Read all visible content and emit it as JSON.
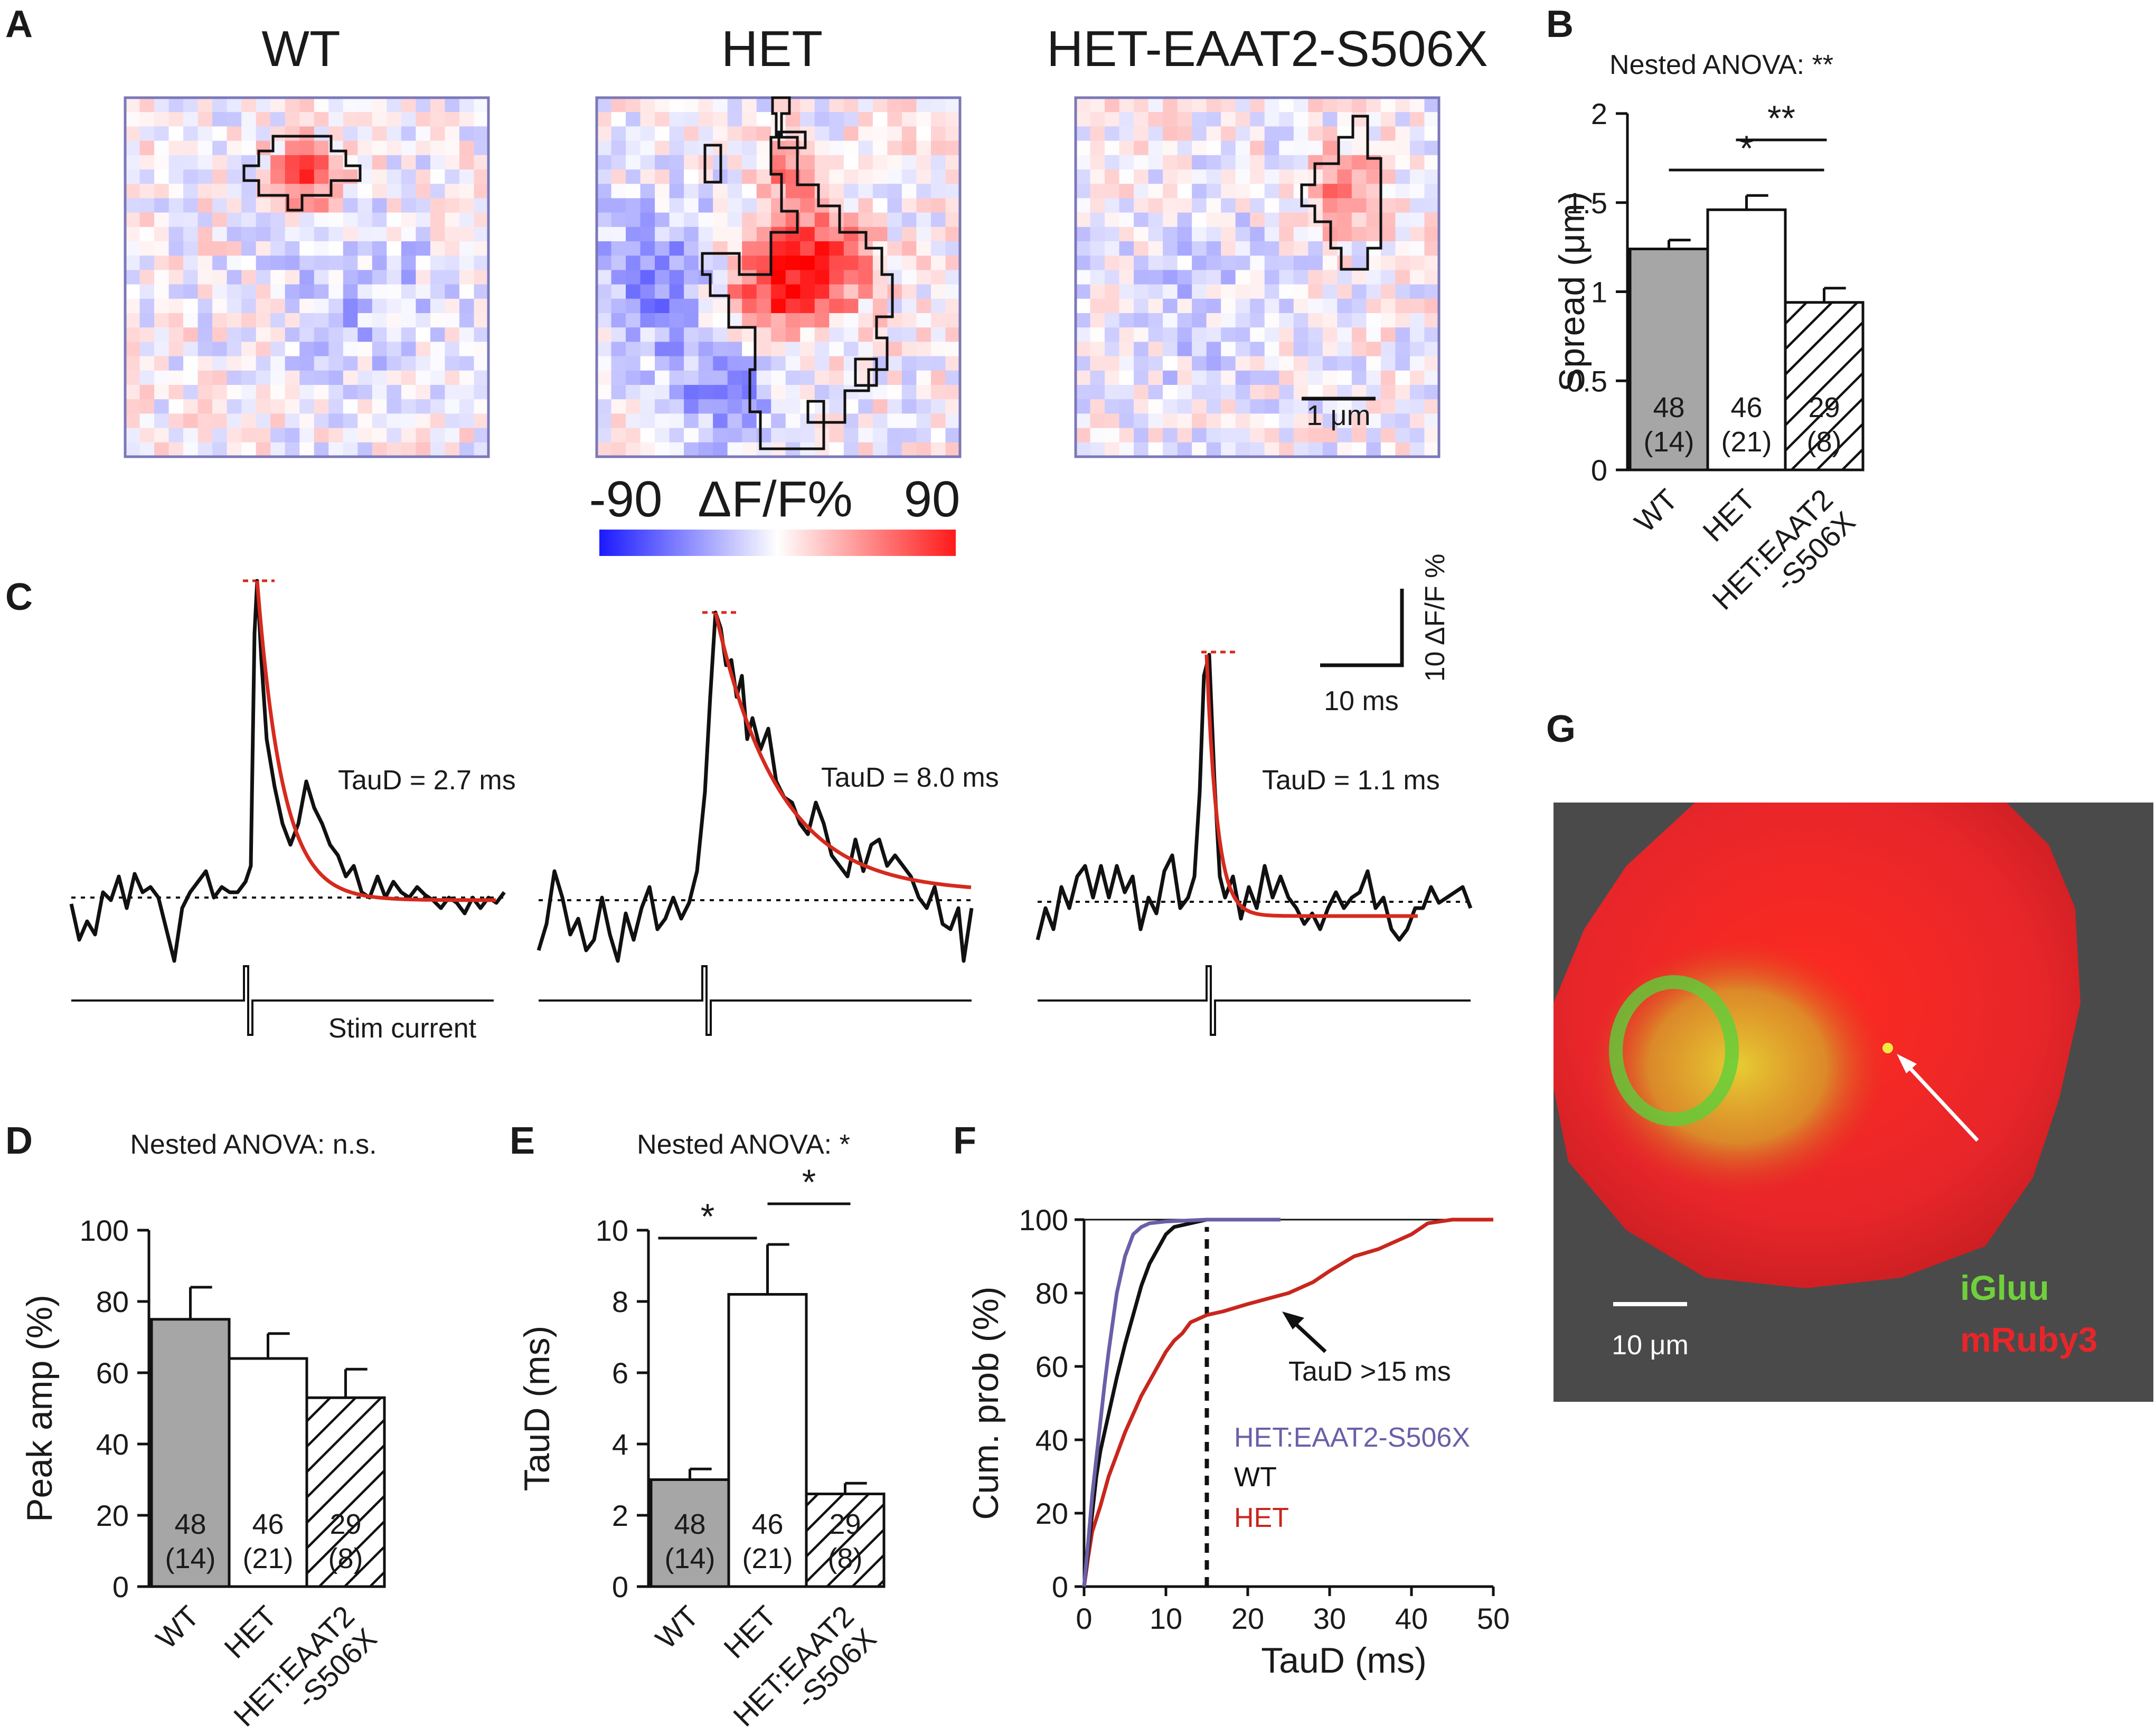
{
  "panel_labels": {
    "A": "A",
    "B": "B",
    "C": "C",
    "D": "D",
    "E": "E",
    "F": "F",
    "G": "G"
  },
  "panelA": {
    "titles": [
      "WT",
      "HET",
      "HET-EAAT2-S506X"
    ],
    "colorbar": {
      "min_label": "-90",
      "label": "ΔF/F%",
      "max_label": "90",
      "low_color": "#1a1aff",
      "high_color": "#ff1a1a"
    },
    "scalebar_label": "1 μm"
  },
  "panelC": {
    "tau_labels": [
      "TauD = 2.7 ms",
      "TauD = 8.0 ms",
      "TauD = 1.1 ms"
    ],
    "stim_label": "Stim current",
    "scale_x_label": "10 ms",
    "scale_y_label": "10 ΔF/F %",
    "fit_color": "#d62a1e"
  },
  "panelG": {
    "scalebar_label": "10 μm",
    "label_green": "iGluu",
    "label_red": "mRuby3",
    "green_color": "#6fd13a",
    "red_color": "#e8262a"
  },
  "chart_data": [
    {
      "id": "B",
      "type": "bar",
      "title": "Nested ANOVA: **",
      "ylabel": "Spread (μm)",
      "categories": [
        "WT",
        "HET",
        "HET:EAAT2-S506X"
      ],
      "category_lines": [
        [
          "WT"
        ],
        [
          "HET"
        ],
        [
          "HET:EAAT2",
          "-S506X"
        ]
      ],
      "values": [
        1.24,
        1.46,
        0.94
      ],
      "errors": [
        0.05,
        0.08,
        0.08
      ],
      "n_cells": [
        "48",
        "46",
        "29"
      ],
      "n_animals": [
        "(14)",
        "(21)",
        "(8)"
      ],
      "ylim": [
        0,
        2
      ],
      "yticks": [
        0,
        0.5,
        1,
        1.5,
        2
      ],
      "ytick_labels": [
        "0",
        "0.5",
        "1",
        "1.5",
        "2"
      ],
      "significance": [
        {
          "from": 0,
          "to": 2,
          "label": "*"
        },
        {
          "from": 1,
          "to": 2,
          "label": "**"
        }
      ]
    },
    {
      "id": "D",
      "type": "bar",
      "title": "Nested ANOVA: n.s.",
      "ylabel": "Peak amp (%)",
      "categories": [
        "WT",
        "HET",
        "HET:EAAT2-S506X"
      ],
      "category_lines": [
        [
          "WT"
        ],
        [
          "HET"
        ],
        [
          "HET:EAAT2",
          "-S506X"
        ]
      ],
      "values": [
        75,
        64,
        53
      ],
      "errors": [
        9,
        7,
        8
      ],
      "n_cells": [
        "48",
        "46",
        "29"
      ],
      "n_animals": [
        "(14)",
        "(21)",
        "(8)"
      ],
      "ylim": [
        0,
        100
      ],
      "yticks": [
        0,
        20,
        40,
        60,
        80,
        100
      ],
      "ytick_labels": [
        "0",
        "20",
        "40",
        "60",
        "80",
        "100"
      ],
      "significance": []
    },
    {
      "id": "E",
      "type": "bar",
      "title": "Nested ANOVA:  *",
      "ylabel": "TauD (ms)",
      "categories": [
        "WT",
        "HET",
        "HET:EAAT2-S506X"
      ],
      "category_lines": [
        [
          "WT"
        ],
        [
          "HET"
        ],
        [
          "HET:EAAT2",
          "-S506X"
        ]
      ],
      "values": [
        3.0,
        8.2,
        2.6
      ],
      "errors": [
        0.3,
        1.4,
        0.3
      ],
      "n_cells": [
        "48",
        "46",
        "29"
      ],
      "n_animals": [
        "(14)",
        "(21)",
        "(8)"
      ],
      "ylim": [
        0,
        10
      ],
      "yticks": [
        0,
        2,
        4,
        6,
        8,
        10
      ],
      "ytick_labels": [
        "0",
        "2",
        "4",
        "6",
        "8",
        "10"
      ],
      "significance": [
        {
          "from": 0,
          "to": 1,
          "label": "*"
        },
        {
          "from": 1,
          "to": 2,
          "label": "*"
        }
      ]
    },
    {
      "id": "F",
      "type": "line",
      "xlabel": "TauD (ms)",
      "ylabel": "Cum. prob (%)",
      "xlim": [
        0,
        50
      ],
      "ylim": [
        0,
        100
      ],
      "xticks": [
        0,
        10,
        20,
        30,
        40,
        50
      ],
      "yticks": [
        0,
        20,
        40,
        60,
        80,
        100
      ],
      "cutoff": 15,
      "annotation": "TauD >15 ms",
      "series": [
        {
          "name": "HET:EAAT2-S506X",
          "color": "#6a5fa8",
          "x": [
            0,
            0.5,
            1,
            1.5,
            2,
            2.5,
            3,
            3.5,
            4,
            5,
            6,
            7,
            8,
            10,
            15,
            24
          ],
          "y": [
            0,
            12,
            25,
            35,
            45,
            55,
            64,
            72,
            80,
            90,
            96,
            98,
            99,
            99.5,
            100,
            100
          ]
        },
        {
          "name": "WT",
          "color": "#111111",
          "x": [
            0,
            0.5,
            1,
            1.5,
            2,
            3,
            4,
            5,
            6,
            7,
            8,
            9,
            10,
            11,
            13,
            15,
            24
          ],
          "y": [
            0,
            10,
            20,
            30,
            37,
            47,
            57,
            66,
            74,
            82,
            88,
            92,
            96,
            98,
            99,
            100,
            100
          ]
        },
        {
          "name": "HET",
          "color": "#c8261e",
          "x": [
            0,
            0.5,
            1,
            2,
            3,
            4,
            5,
            6,
            7,
            8,
            9,
            10,
            11,
            12,
            13,
            14,
            15,
            17,
            20,
            25,
            28,
            30,
            33,
            36,
            38,
            40,
            42,
            45,
            50
          ],
          "y": [
            0,
            8,
            15,
            22,
            30,
            36,
            42,
            47,
            52,
            56,
            60,
            64,
            67,
            69,
            72,
            73,
            74,
            75,
            77,
            80,
            83,
            86,
            90,
            92,
            94,
            96,
            99,
            100,
            100
          ]
        }
      ]
    }
  ]
}
